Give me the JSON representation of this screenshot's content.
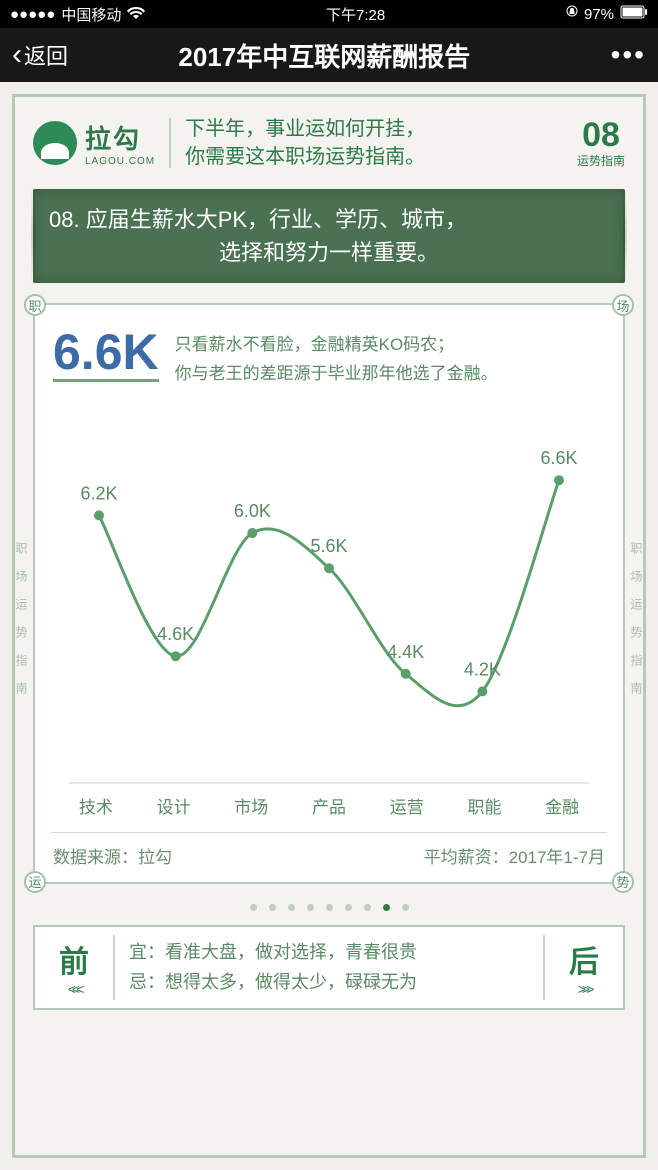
{
  "status": {
    "carrier": "中国移动",
    "time": "下午7:28",
    "battery": "97%"
  },
  "nav": {
    "back": "返回",
    "title": "2017年中互联网薪酬报告"
  },
  "header": {
    "logo_cn": "拉勾",
    "logo_en": "LAGOU.COM",
    "slogan_l1": "下半年，事业运如何开挂，",
    "slogan_l2": "你需要这本职场运势指南。",
    "page_num": "08",
    "page_sub": "运势指南"
  },
  "section": {
    "title_l1": "08. 应届生薪水大PK，行业、学历、城市，",
    "title_l2": "选择和努力一样重要。"
  },
  "chart": {
    "type": "line",
    "big_number": "6.6K",
    "desc_l1": "只看薪水不看脸，金融精英KO码农；",
    "desc_l2": "你与老王的差距源于毕业那年他选了金融。",
    "categories": [
      "技术",
      "设计",
      "市场",
      "产品",
      "运营",
      "职能",
      "金融"
    ],
    "values_k": [
      6.2,
      4.6,
      6.0,
      5.6,
      4.4,
      4.2,
      6.6
    ],
    "labels": [
      "6.2K",
      "4.6K",
      "6.0K",
      "5.6K",
      "4.4K",
      "4.2K",
      "6.6K"
    ],
    "ylim": [
      3.5,
      7.0
    ],
    "line_color": "#5a9e6a",
    "line_width": 3,
    "dot_radius": 5,
    "label_color": "#5a8a63",
    "label_fontsize": 18,
    "background": "#ffffff",
    "source_label": "数据来源：",
    "source_value": "拉勾",
    "avg_label": "平均薪资：",
    "avg_value": "2017年1-7月"
  },
  "corners": {
    "tl": "职",
    "tr": "场",
    "bl": "运",
    "br": "势"
  },
  "side_text": "职场运势指南",
  "pagination": {
    "total": 9,
    "active": 7
  },
  "footer": {
    "prev": "前",
    "next": "后",
    "good_label": "宜：",
    "good_text": "看准大盘，做对选择，青春很贵",
    "bad_label": "忌：",
    "bad_text": "想得太多，做得太少，碌碌无为"
  },
  "colors": {
    "primary": "#2c7a4a",
    "accent": "#3d6ba5",
    "muted_green": "#5a8a63",
    "border": "rgba(91,138,104,0.45)"
  }
}
